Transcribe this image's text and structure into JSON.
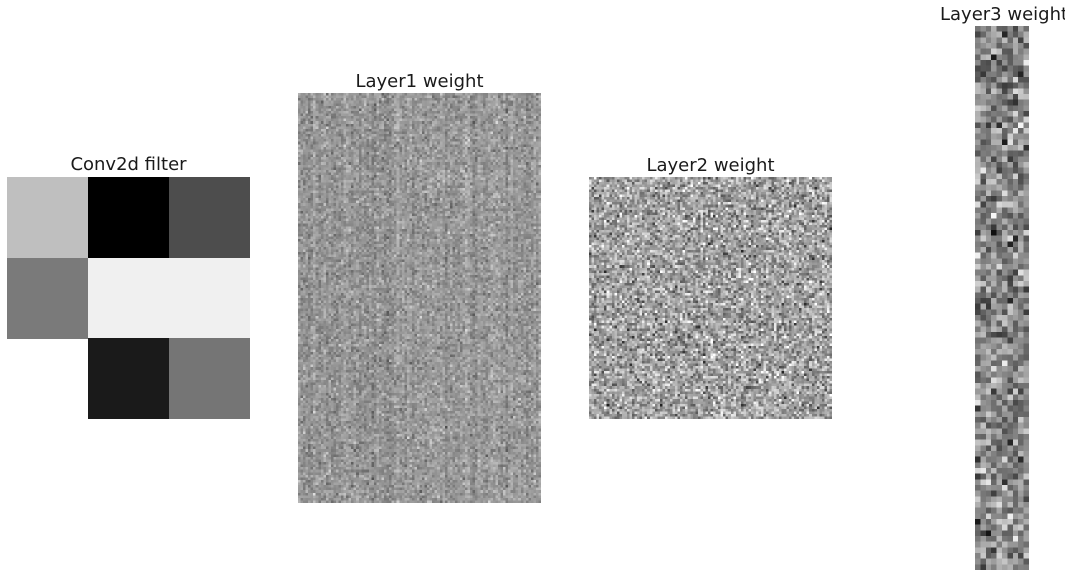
{
  "chart_data": [
    {
      "type": "heatmap",
      "title": "Conv2d filter",
      "colormap": "gray",
      "grid": false,
      "rows": 3,
      "cols": 3,
      "values": [
        [
          0.75,
          0.0,
          0.3
        ],
        [
          0.48,
          0.94,
          0.94
        ],
        [
          null,
          0.1,
          0.46
        ]
      ]
    },
    {
      "type": "heatmap",
      "title": "Layer1 weight",
      "colormap": "gray",
      "grid": false,
      "rows": 160,
      "cols": 96,
      "value_range": [
        -1,
        1
      ],
      "values_note": ""
    },
    {
      "type": "heatmap",
      "title": "Layer2 weight",
      "colormap": "gray",
      "grid": false,
      "rows": 96,
      "cols": 96,
      "value_range": [
        -1,
        1
      ]
    },
    {
      "type": "heatmap",
      "title": "Layer3 weight",
      "colormap": "gray",
      "grid": false,
      "rows": 96,
      "cols": 10,
      "value_range": [
        -1,
        1
      ]
    }
  ]
}
